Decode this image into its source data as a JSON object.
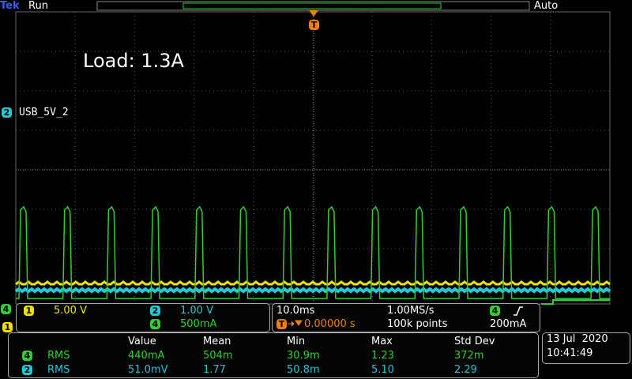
{
  "status_bar": {
    "brand": "Tek",
    "state": "Run",
    "trigger_mode": "Auto",
    "trigger_marker": "T"
  },
  "annotation": "Load: 1.3A",
  "channel_label": {
    "channel": "2",
    "text": "USB_5V_2"
  },
  "left_markers": [
    "4",
    "1"
  ],
  "vertical": [
    {
      "channel": "1",
      "scale": "5.00 V"
    },
    {
      "channel": "2",
      "scale": "1.00 V"
    },
    {
      "channel": "4",
      "scale": "500mA"
    }
  ],
  "horizontal": {
    "time_per_div": "10.0ms",
    "sample_rate": "1.00MS/s",
    "trigger_icon": "T",
    "trigger_position": "0.00000 s",
    "record_length": "100k points"
  },
  "trigger": {
    "channel": "4",
    "level": "200mA"
  },
  "measurements": {
    "headers": [
      "Value",
      "Mean",
      "Min",
      "Max",
      "Std Dev"
    ],
    "rows": [
      {
        "channel": "4",
        "type": "RMS",
        "cells": [
          "440mA",
          "504m",
          "30.9m",
          "1.23",
          "372m"
        ]
      },
      {
        "channel": "2",
        "type": "RMS",
        "cells": [
          "51.0mV",
          "1.77",
          "50.8m",
          "5.10",
          "2.29"
        ]
      }
    ]
  },
  "datetime": {
    "date": "13 Jul  2020",
    "time": "10:41:49"
  }
}
